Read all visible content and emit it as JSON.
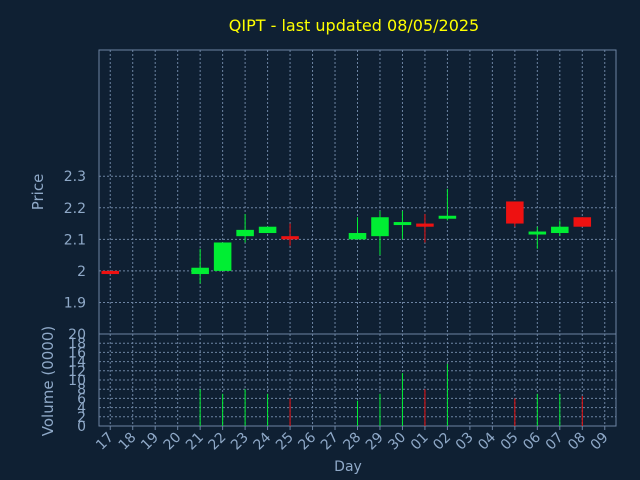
{
  "title": "QIPT - last updated 08/05/2025",
  "colors": {
    "background": "#0f2033",
    "title": "#ffff00",
    "text": "#8fa9c8",
    "frame": "#6d84a3",
    "grid": "#6d84a3",
    "up": "#00ee33",
    "down": "#ee1111"
  },
  "chart_data": [
    {
      "type": "candlestick",
      "ylabel": "Price",
      "ylim": [
        1.8,
        2.7
      ],
      "yticks": [
        "1.9",
        "2",
        "2.1",
        "2.2",
        "2.3"
      ],
      "grid": true,
      "categories": [
        "17",
        "18",
        "19",
        "20",
        "21",
        "22",
        "23",
        "24",
        "25",
        "26",
        "27",
        "28",
        "29",
        "30",
        "01",
        "02",
        "03",
        "04",
        "05",
        "06",
        "07",
        "08",
        "09"
      ],
      "candles": [
        {
          "day": "17",
          "open": 2.0,
          "close": 1.99,
          "high": 2.0,
          "low": 1.99
        },
        {
          "day": "21",
          "open": 1.99,
          "close": 2.01,
          "high": 2.07,
          "low": 1.96
        },
        {
          "day": "22",
          "open": 2.0,
          "close": 2.09,
          "high": 2.09,
          "low": 2.0
        },
        {
          "day": "23",
          "open": 2.11,
          "close": 2.13,
          "high": 2.18,
          "low": 2.09
        },
        {
          "day": "24",
          "open": 2.12,
          "close": 2.14,
          "high": 2.14,
          "low": 2.12
        },
        {
          "day": "25",
          "open": 2.11,
          "close": 2.1,
          "high": 2.15,
          "low": 2.08
        },
        {
          "day": "28",
          "open": 2.1,
          "close": 2.12,
          "high": 2.17,
          "low": 2.1
        },
        {
          "day": "29",
          "open": 2.11,
          "close": 2.17,
          "high": 2.19,
          "low": 2.05
        },
        {
          "day": "30",
          "open": 2.15,
          "close": 2.15,
          "high": 2.19,
          "low": 2.1
        },
        {
          "day": "01",
          "open": 2.15,
          "close": 2.14,
          "high": 2.18,
          "low": 2.09
        },
        {
          "day": "02",
          "open": 2.17,
          "close": 2.17,
          "high": 2.26,
          "low": 2.16
        },
        {
          "day": "05",
          "open": 2.22,
          "close": 2.15,
          "high": 2.22,
          "low": 2.14
        },
        {
          "day": "06",
          "open": 2.12,
          "close": 2.12,
          "high": 2.14,
          "low": 2.07
        },
        {
          "day": "07",
          "open": 2.12,
          "close": 2.14,
          "high": 2.16,
          "low": 2.11
        },
        {
          "day": "08",
          "open": 2.17,
          "close": 2.14,
          "high": 2.17,
          "low": 2.14
        }
      ]
    },
    {
      "type": "bar",
      "ylabel": "Volume (0000)",
      "xlabel": "Day",
      "ylim": [
        0,
        20
      ],
      "yticks": [
        "0",
        "2",
        "4",
        "6",
        "8",
        "10",
        "12",
        "14",
        "16",
        "18",
        "20"
      ],
      "grid": true,
      "categories": [
        "17",
        "18",
        "19",
        "20",
        "21",
        "22",
        "23",
        "24",
        "25",
        "26",
        "27",
        "28",
        "29",
        "30",
        "01",
        "02",
        "03",
        "04",
        "05",
        "06",
        "07",
        "08",
        "09"
      ],
      "bars": [
        {
          "day": "21",
          "value": 8.0,
          "direction": "up"
        },
        {
          "day": "22",
          "value": 7.0,
          "direction": "up"
        },
        {
          "day": "23",
          "value": 8.0,
          "direction": "up"
        },
        {
          "day": "24",
          "value": 7.0,
          "direction": "up"
        },
        {
          "day": "25",
          "value": 6.0,
          "direction": "down"
        },
        {
          "day": "28",
          "value": 5.5,
          "direction": "up"
        },
        {
          "day": "29",
          "value": 7.0,
          "direction": "up"
        },
        {
          "day": "30",
          "value": 11.5,
          "direction": "up"
        },
        {
          "day": "01",
          "value": 8.0,
          "direction": "down"
        },
        {
          "day": "02",
          "value": 13.5,
          "direction": "up"
        },
        {
          "day": "05",
          "value": 6.0,
          "direction": "down"
        },
        {
          "day": "06",
          "value": 7.0,
          "direction": "up"
        },
        {
          "day": "07",
          "value": 7.0,
          "direction": "up"
        },
        {
          "day": "08",
          "value": 6.5,
          "direction": "down"
        }
      ]
    }
  ]
}
